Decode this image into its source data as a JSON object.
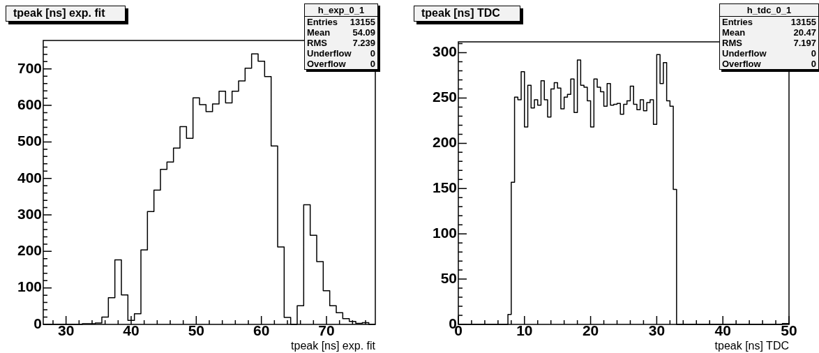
{
  "chart_data": [
    {
      "type": "histogram",
      "title": "tpeak [ns] exp. fit",
      "xlabel": "tpeak [ns] exp. fit",
      "color": "#000000",
      "bins": [
        26.5,
        27.5,
        28.5,
        29.5,
        30.5,
        31.5,
        32.5,
        33.5,
        34.5,
        35.5,
        36.5,
        37.5,
        38.5,
        39.5,
        40.5,
        41.5,
        42.5,
        43.5,
        44.5,
        45.5,
        46.5,
        47.5,
        48.5,
        49.5,
        50.5,
        51.5,
        52.5,
        53.5,
        54.5,
        55.5,
        56.5,
        57.5,
        58.5,
        59.5,
        60.5,
        61.5,
        62.5,
        63.5,
        64.5,
        65.5,
        66.5,
        67.5,
        68.5,
        69.5,
        70.5,
        71.5,
        72.5,
        73.5,
        74.5,
        75.5,
        76.5,
        77.5
      ],
      "values": [
        0,
        0,
        0,
        0,
        0,
        0,
        2,
        2,
        4,
        20,
        73,
        177,
        81,
        11,
        29,
        204,
        309,
        368,
        425,
        445,
        483,
        542,
        510,
        621,
        602,
        583,
        604,
        639,
        607,
        639,
        667,
        702,
        741,
        721,
        679,
        489,
        212,
        19,
        0,
        51,
        328,
        244,
        172,
        92,
        51,
        32,
        16,
        8,
        3,
        5,
        0
      ],
      "xlim": [
        26.5,
        77.5
      ],
      "xticks": [
        {
          "value": 28,
          "label": null
        },
        30,
        {
          "value": 32,
          "label": null
        },
        {
          "value": 34,
          "label": null
        },
        {
          "value": 36,
          "label": null
        },
        {
          "value": 38,
          "label": null
        },
        40,
        {
          "value": 42,
          "label": null
        },
        {
          "value": 44,
          "label": null
        },
        {
          "value": 46,
          "label": null
        },
        {
          "value": 48,
          "label": null
        },
        50,
        {
          "value": 52,
          "label": null
        },
        {
          "value": 54,
          "label": null
        },
        {
          "value": 56,
          "label": null
        },
        {
          "value": 58,
          "label": null
        },
        60,
        {
          "value": 62,
          "label": null
        },
        {
          "value": 64,
          "label": null
        },
        {
          "value": 66,
          "label": null
        },
        {
          "value": 68,
          "label": null
        },
        70,
        {
          "value": 72,
          "label": null
        },
        {
          "value": 74,
          "label": null
        },
        {
          "value": 76,
          "label": null
        }
      ],
      "ylim": [
        0,
        778
      ],
      "yticks": [
        0,
        {
          "value": 20,
          "label": null
        },
        {
          "value": 40,
          "label": null
        },
        {
          "value": 60,
          "label": null
        },
        {
          "value": 80,
          "label": null
        },
        100,
        {
          "value": 120,
          "label": null
        },
        {
          "value": 140,
          "label": null
        },
        {
          "value": 160,
          "label": null
        },
        {
          "value": 180,
          "label": null
        },
        200,
        {
          "value": 220,
          "label": null
        },
        {
          "value": 240,
          "label": null
        },
        {
          "value": 260,
          "label": null
        },
        {
          "value": 280,
          "label": null
        },
        300,
        {
          "value": 320,
          "label": null
        },
        {
          "value": 340,
          "label": null
        },
        {
          "value": 360,
          "label": null
        },
        {
          "value": 380,
          "label": null
        },
        400,
        {
          "value": 420,
          "label": null
        },
        {
          "value": 440,
          "label": null
        },
        {
          "value": 460,
          "label": null
        },
        {
          "value": 480,
          "label": null
        },
        500,
        {
          "value": 520,
          "label": null
        },
        {
          "value": 540,
          "label": null
        },
        {
          "value": 560,
          "label": null
        },
        {
          "value": 580,
          "label": null
        },
        600,
        {
          "value": 620,
          "label": null
        },
        {
          "value": 640,
          "label": null
        },
        {
          "value": 660,
          "label": null
        },
        {
          "value": 680,
          "label": null
        },
        700,
        {
          "value": 720,
          "label": null
        },
        {
          "value": 740,
          "label": null
        },
        {
          "value": 760,
          "label": null
        }
      ],
      "annotations": [
        "h_exp_0_1",
        "Entries 13155",
        "Mean 54.09",
        "RMS 7.239",
        "Underflow 0",
        "Overflow 0"
      ]
    },
    {
      "type": "histogram",
      "title": "tpeak [ns] TDC",
      "xlabel": "tpeak [ns] TDC",
      "color": "#000000",
      "bins": [
        0,
        0.5,
        1,
        1.5,
        2,
        2.5,
        3,
        3.5,
        4,
        4.5,
        5,
        5.5,
        6,
        6.5,
        7,
        7.5,
        8,
        8.5,
        9,
        9.5,
        10,
        10.5,
        11,
        11.5,
        12,
        12.5,
        13,
        13.5,
        14,
        14.5,
        15,
        15.5,
        16,
        16.5,
        17,
        17.5,
        18,
        18.5,
        19,
        19.5,
        20,
        20.5,
        21,
        21.5,
        22,
        22.5,
        23,
        23.5,
        24,
        24.5,
        25,
        25.5,
        26,
        26.5,
        27,
        27.5,
        28,
        28.5,
        29,
        29.5,
        30,
        30.5,
        31,
        31.5,
        32,
        32.5,
        33,
        33.5,
        34,
        34.5,
        35,
        35.5,
        36,
        36.5,
        37,
        37.5,
        38,
        38.5,
        39,
        39.5,
        40,
        40.5,
        41,
        41.5,
        42,
        42.5,
        43,
        43.5,
        44,
        44.5,
        45,
        45.5,
        46,
        46.5,
        47,
        47.5,
        48,
        48.5,
        49,
        49.5,
        50
      ],
      "values": [
        0,
        0,
        0,
        0,
        0,
        0,
        0,
        0,
        0,
        0,
        0,
        0,
        0,
        0,
        0,
        11,
        157,
        251,
        248,
        279,
        218,
        264,
        239,
        248,
        242,
        269,
        248,
        229,
        260,
        267,
        261,
        238,
        251,
        254,
        271,
        234,
        292,
        264,
        262,
        247,
        218,
        271,
        262,
        257,
        241,
        266,
        242,
        243,
        244,
        232,
        243,
        247,
        263,
        243,
        237,
        248,
        236,
        245,
        248,
        221,
        298,
        266,
        289,
        247,
        241,
        149,
        0,
        0,
        0,
        0,
        0,
        0,
        0,
        0,
        0,
        0,
        0,
        0,
        0,
        0,
        0,
        0,
        0,
        0,
        0,
        0,
        0,
        0,
        0,
        0,
        0,
        0,
        0,
        0,
        0,
        0,
        0,
        0,
        1,
        1
      ],
      "xlim": [
        0,
        50
      ],
      "xticks": [
        0,
        {
          "value": 2,
          "label": null
        },
        {
          "value": 4,
          "label": null
        },
        {
          "value": 6,
          "label": null
        },
        {
          "value": 8,
          "label": null
        },
        10,
        {
          "value": 12,
          "label": null
        },
        {
          "value": 14,
          "label": null
        },
        {
          "value": 16,
          "label": null
        },
        {
          "value": 18,
          "label": null
        },
        20,
        {
          "value": 22,
          "label": null
        },
        {
          "value": 24,
          "label": null
        },
        {
          "value": 26,
          "label": null
        },
        {
          "value": 28,
          "label": null
        },
        30,
        {
          "value": 32,
          "label": null
        },
        {
          "value": 34,
          "label": null
        },
        {
          "value": 36,
          "label": null
        },
        {
          "value": 38,
          "label": null
        },
        40,
        {
          "value": 42,
          "label": null
        },
        {
          "value": 44,
          "label": null
        },
        {
          "value": 46,
          "label": null
        },
        {
          "value": 48,
          "label": null
        },
        50
      ],
      "ylim": [
        0,
        312
      ],
      "yticks": [
        0,
        {
          "value": 10,
          "label": null
        },
        {
          "value": 20,
          "label": null
        },
        {
          "value": 30,
          "label": null
        },
        {
          "value": 40,
          "label": null
        },
        50,
        {
          "value": 60,
          "label": null
        },
        {
          "value": 70,
          "label": null
        },
        {
          "value": 80,
          "label": null
        },
        {
          "value": 90,
          "label": null
        },
        100,
        {
          "value": 110,
          "label": null
        },
        {
          "value": 120,
          "label": null
        },
        {
          "value": 130,
          "label": null
        },
        {
          "value": 140,
          "label": null
        },
        150,
        {
          "value": 160,
          "label": null
        },
        {
          "value": 170,
          "label": null
        },
        {
          "value": 180,
          "label": null
        },
        {
          "value": 190,
          "label": null
        },
        200,
        {
          "value": 210,
          "label": null
        },
        {
          "value": 220,
          "label": null
        },
        {
          "value": 230,
          "label": null
        },
        {
          "value": 240,
          "label": null
        },
        250,
        {
          "value": 260,
          "label": null
        },
        {
          "value": 270,
          "label": null
        },
        {
          "value": 280,
          "label": null
        },
        {
          "value": 290,
          "label": null
        },
        300,
        {
          "value": 310,
          "label": null
        }
      ],
      "annotations": [
        "h_tdc_0_1",
        "Entries 13155",
        "Mean 20.47",
        "RMS 7.197",
        "Underflow 0",
        "Overflow 0"
      ]
    }
  ]
}
